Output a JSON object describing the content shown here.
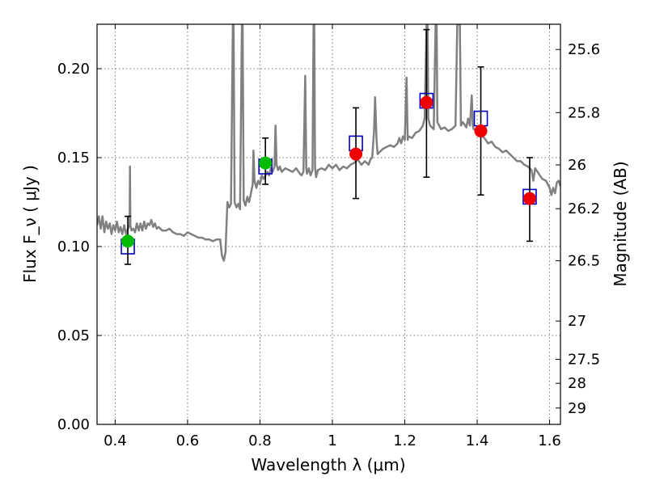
{
  "chart_data": {
    "type": "scatter",
    "xlabel": "Wavelength  λ (μm)",
    "ylabel": "Flux  F_ν  ( μJy )",
    "y2label": "Magnitude (AB)",
    "xlim": [
      0.35,
      1.63
    ],
    "ylim": [
      0.0,
      0.225
    ],
    "grid": true,
    "x_ticks": [
      0.4,
      0.6,
      0.8,
      1.0,
      1.2,
      1.4,
      1.6
    ],
    "x_tick_labels": [
      "0.4",
      "0.6",
      "0.8",
      "1",
      "1.2",
      "1.4",
      "1.6"
    ],
    "y_ticks": [
      0.0,
      0.05,
      0.1,
      0.15,
      0.2
    ],
    "y_tick_labels": [
      "0.00",
      "0.05",
      "0.10",
      "0.15",
      "0.20"
    ],
    "mag_ticks": [
      {
        "label": "25.6",
        "flux": 0.2108
      },
      {
        "label": "25.8",
        "flux": 0.1753
      },
      {
        "label": "26",
        "flux": 0.1459
      },
      {
        "label": "26.2",
        "flux": 0.1213
      },
      {
        "label": "26.5",
        "flux": 0.092
      },
      {
        "label": "27",
        "flux": 0.0581
      },
      {
        "label": "27.5",
        "flux": 0.0366
      },
      {
        "label": "28",
        "flux": 0.0231
      },
      {
        "label": "29",
        "flux": 0.0092
      }
    ],
    "model_spectrum": {
      "color": "#808080",
      "points": [
        [
          0.35,
          0.112
        ],
        [
          0.355,
          0.117
        ],
        [
          0.36,
          0.11
        ],
        [
          0.365,
          0.117
        ],
        [
          0.37,
          0.108
        ],
        [
          0.375,
          0.114
        ],
        [
          0.38,
          0.11
        ],
        [
          0.385,
          0.113
        ],
        [
          0.39,
          0.107
        ],
        [
          0.395,
          0.112
        ],
        [
          0.4,
          0.109
        ],
        [
          0.405,
          0.114
        ],
        [
          0.41,
          0.108
        ],
        [
          0.415,
          0.111
        ],
        [
          0.42,
          0.107
        ],
        [
          0.425,
          0.112
        ],
        [
          0.43,
          0.107
        ],
        [
          0.435,
          0.11
        ],
        [
          0.44,
          0.112
        ],
        [
          0.441,
          0.145
        ],
        [
          0.442,
          0.112
        ],
        [
          0.445,
          0.109
        ],
        [
          0.45,
          0.11
        ],
        [
          0.455,
          0.108
        ],
        [
          0.46,
          0.113
        ],
        [
          0.465,
          0.109
        ],
        [
          0.47,
          0.113
        ],
        [
          0.475,
          0.109
        ],
        [
          0.48,
          0.114
        ],
        [
          0.485,
          0.11
        ],
        [
          0.49,
          0.113
        ],
        [
          0.495,
          0.112
        ],
        [
          0.5,
          0.115
        ],
        [
          0.505,
          0.111
        ],
        [
          0.51,
          0.113
        ],
        [
          0.515,
          0.11
        ],
        [
          0.52,
          0.111
        ],
        [
          0.53,
          0.109
        ],
        [
          0.54,
          0.109
        ],
        [
          0.55,
          0.11
        ],
        [
          0.56,
          0.108
        ],
        [
          0.57,
          0.107
        ],
        [
          0.58,
          0.107
        ],
        [
          0.59,
          0.106
        ],
        [
          0.6,
          0.108
        ],
        [
          0.61,
          0.107
        ],
        [
          0.62,
          0.106
        ],
        [
          0.63,
          0.105
        ],
        [
          0.64,
          0.105
        ],
        [
          0.65,
          0.104
        ],
        [
          0.66,
          0.104
        ],
        [
          0.67,
          0.103
        ],
        [
          0.68,
          0.104
        ],
        [
          0.69,
          0.104
        ],
        [
          0.695,
          0.095
        ],
        [
          0.7,
          0.092
        ],
        [
          0.705,
          0.097
        ],
        [
          0.708,
          0.115
        ],
        [
          0.71,
          0.125
        ],
        [
          0.715,
          0.122
        ],
        [
          0.72,
          0.124
        ],
        [
          0.725,
          0.225
        ],
        [
          0.727,
          0.225
        ],
        [
          0.73,
          0.125
        ],
        [
          0.735,
          0.122
        ],
        [
          0.74,
          0.124
        ],
        [
          0.745,
          0.121
        ],
        [
          0.75,
          0.225
        ],
        [
          0.752,
          0.225
        ],
        [
          0.755,
          0.126
        ],
        [
          0.76,
          0.123
        ],
        [
          0.765,
          0.128
        ],
        [
          0.77,
          0.125
        ],
        [
          0.775,
          0.13
        ],
        [
          0.78,
          0.135
        ],
        [
          0.782,
          0.154
        ],
        [
          0.785,
          0.137
        ],
        [
          0.79,
          0.133
        ],
        [
          0.795,
          0.137
        ],
        [
          0.8,
          0.135
        ],
        [
          0.805,
          0.14
        ],
        [
          0.81,
          0.138
        ],
        [
          0.815,
          0.14
        ],
        [
          0.82,
          0.142
        ],
        [
          0.825,
          0.14
        ],
        [
          0.83,
          0.144
        ],
        [
          0.835,
          0.142
        ],
        [
          0.84,
          0.145
        ],
        [
          0.843,
          0.168
        ],
        [
          0.846,
          0.146
        ],
        [
          0.85,
          0.143
        ],
        [
          0.855,
          0.145
        ],
        [
          0.86,
          0.142
        ],
        [
          0.87,
          0.144
        ],
        [
          0.88,
          0.143
        ],
        [
          0.89,
          0.142
        ],
        [
          0.9,
          0.144
        ],
        [
          0.91,
          0.141
        ],
        [
          0.915,
          0.14
        ],
        [
          0.92,
          0.142
        ],
        [
          0.925,
          0.196
        ],
        [
          0.928,
          0.144
        ],
        [
          0.93,
          0.141
        ],
        [
          0.935,
          0.144
        ],
        [
          0.94,
          0.14
        ],
        [
          0.945,
          0.143
        ],
        [
          0.948,
          0.225
        ],
        [
          0.95,
          0.225
        ],
        [
          0.952,
          0.145
        ],
        [
          0.955,
          0.139
        ],
        [
          0.96,
          0.143
        ],
        [
          0.97,
          0.144
        ],
        [
          0.98,
          0.143
        ],
        [
          0.99,
          0.146
        ],
        [
          1.0,
          0.144
        ],
        [
          1.01,
          0.146
        ],
        [
          1.02,
          0.143
        ],
        [
          1.03,
          0.145
        ],
        [
          1.04,
          0.144
        ],
        [
          1.05,
          0.146
        ],
        [
          1.06,
          0.147
        ],
        [
          1.07,
          0.149
        ],
        [
          1.08,
          0.146
        ],
        [
          1.09,
          0.148
        ],
        [
          1.1,
          0.146
        ],
        [
          1.105,
          0.149
        ],
        [
          1.11,
          0.15
        ],
        [
          1.115,
          0.165
        ],
        [
          1.118,
          0.184
        ],
        [
          1.122,
          0.16
        ],
        [
          1.125,
          0.152
        ],
        [
          1.13,
          0.153
        ],
        [
          1.14,
          0.155
        ],
        [
          1.15,
          0.156
        ],
        [
          1.16,
          0.157
        ],
        [
          1.17,
          0.156
        ],
        [
          1.18,
          0.158
        ],
        [
          1.185,
          0.161
        ],
        [
          1.19,
          0.158
        ],
        [
          1.195,
          0.162
        ],
        [
          1.2,
          0.16
        ],
        [
          1.205,
          0.195
        ],
        [
          1.208,
          0.16
        ],
        [
          1.21,
          0.162
        ],
        [
          1.22,
          0.161
        ],
        [
          1.23,
          0.164
        ],
        [
          1.24,
          0.165
        ],
        [
          1.25,
          0.168
        ],
        [
          1.255,
          0.172
        ],
        [
          1.26,
          0.225
        ],
        [
          1.263,
          0.225
        ],
        [
          1.265,
          0.172
        ],
        [
          1.27,
          0.168
        ],
        [
          1.28,
          0.166
        ],
        [
          1.285,
          0.225
        ],
        [
          1.288,
          0.225
        ],
        [
          1.29,
          0.17
        ],
        [
          1.3,
          0.166
        ],
        [
          1.31,
          0.167
        ],
        [
          1.32,
          0.165
        ],
        [
          1.33,
          0.166
        ],
        [
          1.34,
          0.168
        ],
        [
          1.345,
          0.225
        ],
        [
          1.352,
          0.225
        ],
        [
          1.355,
          0.168
        ],
        [
          1.36,
          0.17
        ],
        [
          1.37,
          0.167
        ],
        [
          1.375,
          0.172
        ],
        [
          1.38,
          0.168
        ],
        [
          1.385,
          0.185
        ],
        [
          1.388,
          0.168
        ],
        [
          1.39,
          0.166
        ],
        [
          1.4,
          0.165
        ],
        [
          1.41,
          0.163
        ],
        [
          1.42,
          0.161
        ],
        [
          1.43,
          0.158
        ],
        [
          1.44,
          0.159
        ],
        [
          1.45,
          0.156
        ],
        [
          1.46,
          0.155
        ],
        [
          1.47,
          0.153
        ],
        [
          1.48,
          0.154
        ],
        [
          1.49,
          0.152
        ],
        [
          1.5,
          0.15
        ],
        [
          1.51,
          0.148
        ],
        [
          1.52,
          0.148
        ],
        [
          1.53,
          0.146
        ],
        [
          1.54,
          0.145
        ],
        [
          1.55,
          0.143
        ],
        [
          1.555,
          0.137
        ],
        [
          1.56,
          0.144
        ],
        [
          1.57,
          0.141
        ],
        [
          1.58,
          0.138
        ],
        [
          1.59,
          0.137
        ],
        [
          1.6,
          0.133
        ],
        [
          1.605,
          0.129
        ],
        [
          1.61,
          0.133
        ],
        [
          1.615,
          0.13
        ],
        [
          1.62,
          0.136
        ],
        [
          1.625,
          0.137
        ],
        [
          1.63,
          0.134
        ]
      ]
    },
    "model_fluxes": {
      "color": "#0000cc",
      "points": [
        [
          0.435,
          0.1
        ],
        [
          0.815,
          0.145
        ],
        [
          1.065,
          0.158
        ],
        [
          1.26,
          0.182
        ],
        [
          1.41,
          0.172
        ],
        [
          1.545,
          0.128
        ]
      ]
    },
    "observations_optical": {
      "color": "#00bb00",
      "points": [
        [
          0.435,
          0.103,
          0.117,
          0.09
        ],
        [
          0.815,
          0.147,
          0.161,
          0.135
        ]
      ]
    },
    "observations_nir": {
      "color": "#ee0000",
      "points": [
        [
          1.065,
          0.152,
          0.178,
          0.127
        ],
        [
          1.26,
          0.181,
          0.222,
          0.139
        ],
        [
          1.41,
          0.165,
          0.201,
          0.129
        ],
        [
          1.545,
          0.127,
          0.15,
          0.103
        ]
      ]
    }
  }
}
